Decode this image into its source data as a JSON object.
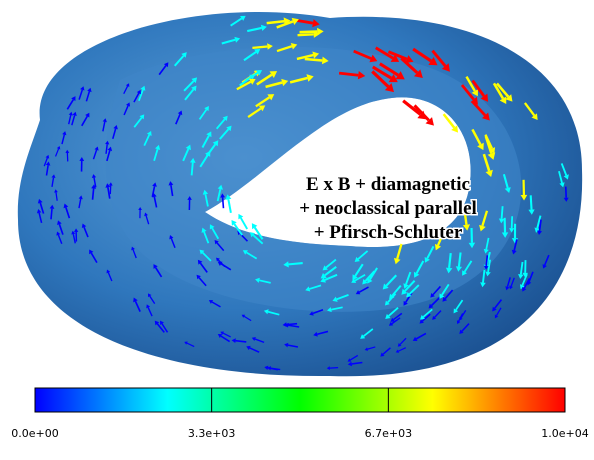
{
  "annotation": [
    "E x B + diamagnetic",
    "+ neoclassical parallel",
    "+ Pfirsch-Schluter"
  ],
  "colorbar": {
    "range": [
      0,
      10000
    ],
    "colors": [
      "#0000ff",
      "#00ffff",
      "#00ff00",
      "#ffff00",
      "#ff0000"
    ],
    "ticks": [
      {
        "value": 0,
        "label": "0.0e+00"
      },
      {
        "value": 3333,
        "label": "3.3e+03"
      },
      {
        "value": 6667,
        "label": "6.7e+03"
      },
      {
        "value": 10000,
        "label": "1.0e+04"
      }
    ]
  }
}
